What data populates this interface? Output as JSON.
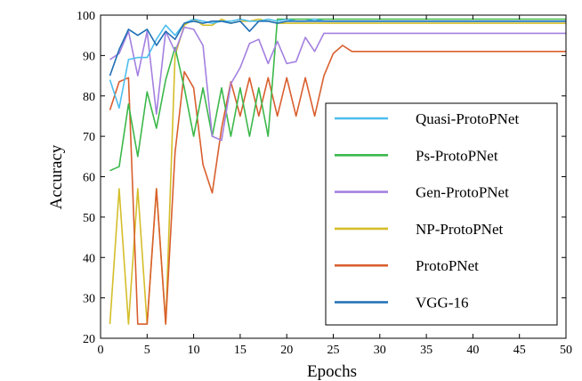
{
  "chart_data": {
    "type": "line",
    "title": "",
    "xlabel": "Epochs",
    "ylabel": "Accuracy",
    "xlim": [
      0,
      50
    ],
    "ylim": [
      20,
      100
    ],
    "xticks": [
      0,
      5,
      10,
      15,
      20,
      25,
      30,
      35,
      40,
      45,
      50
    ],
    "yticks": [
      20,
      30,
      40,
      50,
      60,
      70,
      80,
      90,
      100
    ],
    "grid": false,
    "legend_position": "lower-right",
    "series": [
      {
        "name": "Quasi-ProtoPNet",
        "color": "#4dbeee",
        "x": [
          1,
          2,
          3,
          4,
          5,
          6,
          7,
          8,
          9,
          10,
          11,
          12,
          13,
          14,
          15,
          16,
          17,
          18,
          19,
          20,
          21,
          22,
          23,
          24,
          50
        ],
        "y": [
          84,
          77,
          89,
          89.5,
          89.5,
          94,
          97.5,
          95,
          98,
          99,
          98.5,
          98,
          98.5,
          98.5,
          99,
          98.5,
          98.5,
          99,
          98.5,
          99,
          98.5,
          98.5,
          99,
          98.5,
          98.5
        ]
      },
      {
        "name": "Ps-ProtoPNet",
        "color": "#3cb84a",
        "x": [
          1,
          2,
          3,
          4,
          5,
          6,
          7,
          8,
          9,
          10,
          11,
          12,
          13,
          14,
          15,
          16,
          17,
          18,
          19,
          50
        ],
        "y": [
          61.5,
          62.5,
          78,
          65,
          81,
          72,
          84,
          92,
          82,
          70,
          82,
          70,
          82,
          70,
          82,
          70,
          82,
          70,
          99,
          99
        ]
      },
      {
        "name": "Gen-ProtoPNet",
        "color": "#a480e0",
        "x": [
          1,
          2,
          3,
          4,
          5,
          6,
          7,
          8,
          9,
          10,
          11,
          12,
          13,
          14,
          15,
          16,
          17,
          18,
          19,
          20,
          21,
          22,
          23,
          24,
          50
        ],
        "y": [
          89,
          90.5,
          96,
          85,
          96,
          75.5,
          96,
          91,
          97,
          96.5,
          92.5,
          70,
          69,
          83,
          87,
          93,
          94,
          88,
          93.5,
          88,
          88.5,
          94.5,
          91,
          95.5,
          95.5
        ]
      },
      {
        "name": "NP-ProtoPNet",
        "color": "#d4be2a",
        "x": [
          1,
          2,
          3,
          4,
          5,
          6,
          7,
          8,
          9,
          10,
          11,
          12,
          13,
          14,
          15,
          16,
          17,
          18,
          19,
          20,
          50
        ],
        "y": [
          23.5,
          57,
          23.5,
          57,
          23.5,
          57,
          23.5,
          90,
          97.5,
          99,
          97.5,
          97.5,
          99,
          98,
          98.5,
          98.5,
          99,
          98.5,
          98,
          98,
          98
        ]
      },
      {
        "name": "ProtoPNet",
        "color": "#d95f2e",
        "x": [
          1,
          2,
          3,
          4,
          5,
          6,
          7,
          8,
          9,
          10,
          11,
          12,
          13,
          14,
          15,
          16,
          17,
          18,
          19,
          20,
          21,
          22,
          23,
          24,
          25,
          26,
          27,
          50
        ],
        "y": [
          76.5,
          83.5,
          84.5,
          23.5,
          23.5,
          57,
          23.5,
          66,
          86,
          82,
          63,
          56,
          72,
          83.5,
          75,
          84.5,
          75,
          84.5,
          75,
          84.5,
          75,
          84.5,
          75,
          85,
          90.5,
          92.5,
          91,
          91
        ]
      },
      {
        "name": "VGG-16",
        "color": "#1f6fb5",
        "x": [
          1,
          2,
          3,
          4,
          5,
          6,
          7,
          8,
          9,
          10,
          11,
          12,
          13,
          14,
          15,
          16,
          17,
          18,
          19,
          20,
          50
        ],
        "y": [
          85,
          91.5,
          96.5,
          95,
          96.5,
          92.5,
          96,
          94,
          98,
          98.5,
          98,
          98.5,
          98.5,
          98,
          98.5,
          96,
          98.5,
          98.5,
          98,
          98.5,
          98.5
        ]
      }
    ]
  }
}
